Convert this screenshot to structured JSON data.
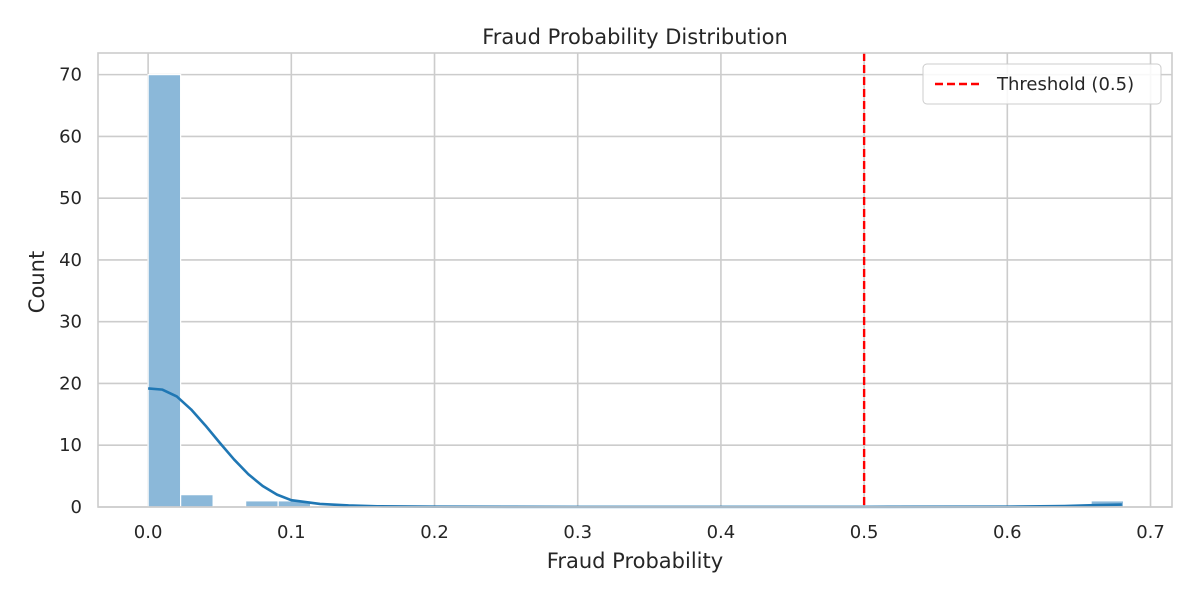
{
  "chart_data": {
    "type": "bar",
    "title": "Fraud Probability Distribution",
    "xlabel": "Fraud Probability",
    "ylabel": "Count",
    "xlim": [
      -0.035,
      0.715
    ],
    "ylim": [
      0,
      73.5
    ],
    "xticks": [
      0.0,
      0.1,
      0.2,
      0.3,
      0.4,
      0.5,
      0.6,
      0.7
    ],
    "xtick_labels": [
      "0.0",
      "0.1",
      "0.2",
      "0.3",
      "0.4",
      "0.5",
      "0.6",
      "0.7"
    ],
    "yticks": [
      0,
      10,
      20,
      30,
      40,
      50,
      60,
      70
    ],
    "ytick_labels": [
      "0",
      "10",
      "20",
      "30",
      "40",
      "50",
      "60",
      "70"
    ],
    "grid": true,
    "bin_width": 0.0227,
    "bins": [
      {
        "x0": 0.0,
        "x1": 0.0227,
        "count": 70
      },
      {
        "x0": 0.0227,
        "x1": 0.0454,
        "count": 2
      },
      {
        "x0": 0.0454,
        "x1": 0.0681,
        "count": 0
      },
      {
        "x0": 0.0681,
        "x1": 0.0908,
        "count": 1
      },
      {
        "x0": 0.0908,
        "x1": 0.1135,
        "count": 1
      },
      {
        "x0": 0.6585,
        "x1": 0.6812,
        "count": 1
      }
    ],
    "kde": {
      "x": [
        0.0,
        0.01,
        0.02,
        0.03,
        0.04,
        0.05,
        0.06,
        0.07,
        0.08,
        0.09,
        0.1,
        0.12,
        0.14,
        0.16,
        0.2,
        0.3,
        0.4,
        0.5,
        0.6,
        0.64,
        0.66,
        0.68
      ],
      "y": [
        19.2,
        19.0,
        17.9,
        15.8,
        13.2,
        10.4,
        7.7,
        5.3,
        3.4,
        2.0,
        1.1,
        0.5,
        0.25,
        0.12,
        0.05,
        0.02,
        0.02,
        0.02,
        0.05,
        0.15,
        0.3,
        0.4
      ]
    },
    "threshold": {
      "x": 0.5,
      "label": "Threshold (0.5)",
      "color": "#ff0000"
    },
    "legend": {
      "placement": "top-right",
      "entries": [
        "Threshold (0.5)"
      ]
    },
    "colors": {
      "bar": "#8bb8d9",
      "kde": "#1f77b4",
      "grid": "#cccccc",
      "frame": "#cccccc"
    }
  }
}
